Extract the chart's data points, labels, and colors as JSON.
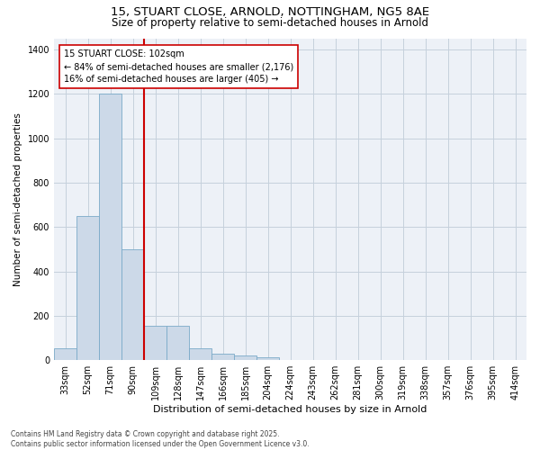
{
  "title_line1": "15, STUART CLOSE, ARNOLD, NOTTINGHAM, NG5 8AE",
  "title_line2": "Size of property relative to semi-detached houses in Arnold",
  "xlabel": "Distribution of semi-detached houses by size in Arnold",
  "ylabel": "Number of semi-detached properties",
  "footnote": "Contains HM Land Registry data © Crown copyright and database right 2025.\nContains public sector information licensed under the Open Government Licence v3.0.",
  "bar_labels": [
    "33sqm",
    "52sqm",
    "71sqm",
    "90sqm",
    "109sqm",
    "128sqm",
    "147sqm",
    "166sqm",
    "185sqm",
    "204sqm",
    "224sqm",
    "243sqm",
    "262sqm",
    "281sqm",
    "300sqm",
    "319sqm",
    "338sqm",
    "357sqm",
    "376sqm",
    "395sqm",
    "414sqm"
  ],
  "bar_values": [
    55,
    650,
    1200,
    500,
    155,
    155,
    55,
    30,
    20,
    15,
    0,
    0,
    0,
    0,
    0,
    0,
    0,
    0,
    0,
    0,
    0
  ],
  "bar_color": "#ccd9e8",
  "bar_edge_color": "#7aaac8",
  "annotation_line1": "15 STUART CLOSE: 102sqm",
  "annotation_line2": "← 84% of semi-detached houses are smaller (2,176)",
  "annotation_line3": "16% of semi-detached houses are larger (405) →",
  "red_line_color": "#cc0000",
  "grid_color": "#c5d0dc",
  "background_color": "#edf1f7",
  "ylim": [
    0,
    1450
  ],
  "yticks": [
    0,
    200,
    400,
    600,
    800,
    1000,
    1200,
    1400
  ],
  "title_fontsize": 9.5,
  "subtitle_fontsize": 8.5,
  "xlabel_fontsize": 8,
  "ylabel_fontsize": 7.5,
  "tick_fontsize": 7,
  "annot_fontsize": 7,
  "footnote_fontsize": 5.5
}
